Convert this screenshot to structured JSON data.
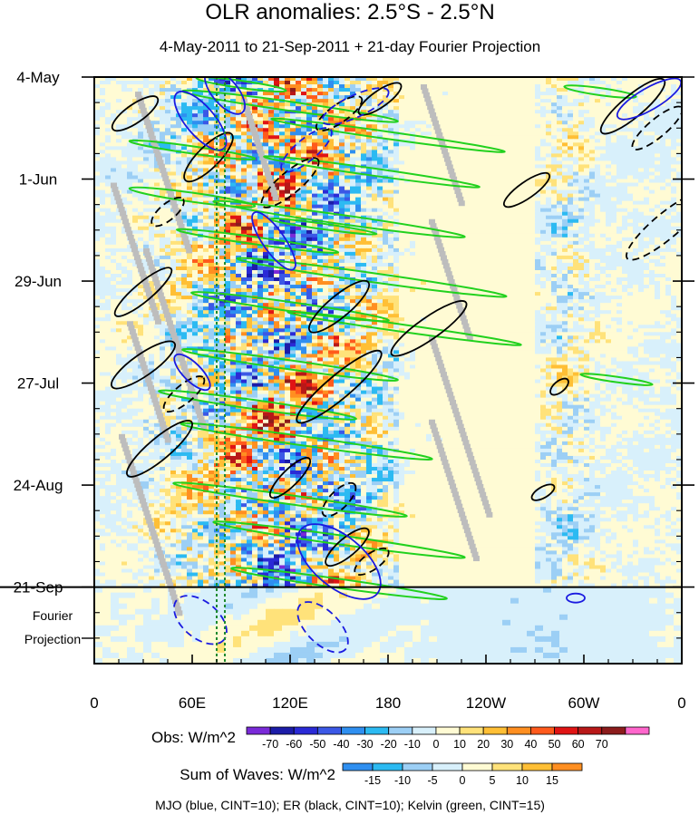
{
  "chart_data": {
    "type": "heatmap",
    "title": "OLR anomalies: 2.5°S - 2.5°N",
    "subtitle": "4-May-2011 to 21-Sep-2011 + 21-day Fourier Projection",
    "x_axis": {
      "ticks": [
        "0",
        "60E",
        "120E",
        "180",
        "120W",
        "60W",
        "0"
      ],
      "range_deg_east": [
        0,
        360
      ]
    },
    "y_axis": {
      "ticks": [
        "4-May",
        "1-Jun",
        "29-Jun",
        "27-Jul",
        "24-Aug",
        "21-Sep"
      ],
      "projection_label": [
        "Fourier",
        "Projection"
      ],
      "range": [
        "2011-05-04",
        "2011-10-12"
      ],
      "projection_start": "2011-09-21",
      "inverted": true
    },
    "obs_colorbar": {
      "label": "Obs: W/m^2",
      "levels": [
        "-70",
        "-60",
        "-50",
        "-40",
        "-30",
        "-20",
        "-10",
        "0",
        "10",
        "20",
        "30",
        "40",
        "50",
        "60",
        "70"
      ],
      "colors": [
        "#7a2ad8",
        "#1c1ca8",
        "#2a2ad6",
        "#3b58e6",
        "#2f8ff0",
        "#2cbaf2",
        "#9ccff5",
        "#d8f0fb",
        "#fffbd4",
        "#ffe27a",
        "#ffbf35",
        "#ff8f21",
        "#ff5a1c",
        "#e01414",
        "#b81818",
        "#8c1c1c",
        "#ff66cc"
      ]
    },
    "waves_colorbar": {
      "label": "Sum of Waves: W/m^2",
      "levels": [
        "-15",
        "-10",
        "-5",
        "0",
        "5",
        "10",
        "15"
      ],
      "colors": [
        "#2f8ff0",
        "#2cbaf2",
        "#9ccff5",
        "#d8f0fb",
        "#fffbd4",
        "#ffe27a",
        "#ffbf35",
        "#ff8f21"
      ]
    },
    "footer": "MJO (blue, CINT=10); ER (black, CINT=10); Kelvin (green, CINT=15)",
    "wave_colors": {
      "mjo": "#1a1ae0",
      "er": "#000000",
      "kelvin": "#22d11e"
    },
    "reference_lines_deg_east": [
      75,
      80
    ]
  }
}
